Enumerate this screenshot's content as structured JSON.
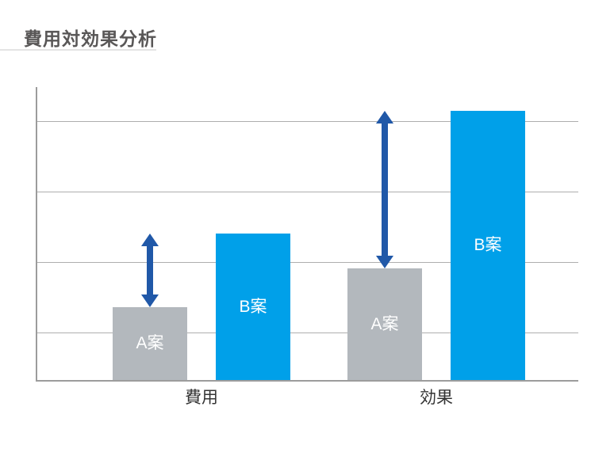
{
  "page": {
    "title": "費用対効果分析"
  },
  "chart_data": {
    "type": "bar",
    "title": "費用対効果分析",
    "categories": [
      "費用",
      "効果"
    ],
    "category_keys": [
      "cost",
      "effect"
    ],
    "series": [
      {
        "name": "A案",
        "key": "plan-a",
        "values": [
          25,
          38
        ],
        "color": "#b3b8bd",
        "label_color": "#ffffff"
      },
      {
        "name": "B案",
        "key": "plan-b",
        "values": [
          50,
          92
        ],
        "color": "#00a0e9",
        "label_color": "#ffffff"
      }
    ],
    "ylim": [
      0,
      100
    ],
    "gridlines_y": [
      16,
      40,
      64,
      88
    ],
    "grid": true,
    "legend": "none",
    "bar_labels": "series name centered inside each bar",
    "annotations": [
      {
        "type": "double-arrow",
        "category": "費用",
        "category_index": 0,
        "from_value": 25,
        "to_value": 50,
        "meaning": "gap between A案 and B案 tops",
        "color": "#2058a8"
      },
      {
        "type": "double-arrow",
        "category": "効果",
        "category_index": 1,
        "from_value": 38,
        "to_value": 92,
        "meaning": "gap between A案 and B案 tops",
        "color": "#2058a8"
      }
    ]
  },
  "colors": {
    "background": "#ffffff",
    "title_text": "#595757",
    "title_underline": "#e4e4e4",
    "axis_line": "#9c9c9c",
    "gridline": "#aeaeae",
    "category_label": "#333333",
    "bar_gray": "#b3b8bd",
    "bar_blue": "#00a0e9",
    "arrow_blue": "#2058a8"
  }
}
